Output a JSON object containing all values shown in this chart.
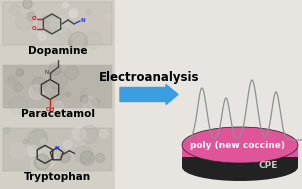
{
  "bg_color": "#e8e4df",
  "arrow_color": "#3a9ee0",
  "arrow_text": "Electroanalysis",
  "arrow_text_fontsize": 8.5,
  "label_dopamine": "Dopamine",
  "label_paracetamol": "Paracetamol",
  "label_tryptophan": "Tryptophan",
  "label_fontsize": 7.5,
  "label_color": "#000000",
  "electrode_top_color": "#e0559a",
  "electrode_bottom_color": "#222222",
  "electrode_label_top": "poly (new coccine)",
  "electrode_label_bottom": "CPE",
  "electrode_label_color_top": "#ffffff",
  "electrode_label_color_bottom": "#cccccc",
  "electrode_label_fontsize": 6.5,
  "signal_color": "#909090",
  "signal_linewidth": 0.9,
  "left_panel_bg": "#d4d0c8",
  "dopamine_img_colors": [
    "#c8c4bc",
    "#e8e0d8",
    "#d0ccc4"
  ],
  "paracetamol_img_colors": [
    "#b0aca4",
    "#d0ccc4",
    "#c0bcb4"
  ],
  "tryptophan_img_colors": [
    "#bab6ae",
    "#d8d4cc",
    "#c8c4bc"
  ],
  "red_accent": "#cc2020",
  "blue_accent": "#2244cc",
  "dark_accent": "#333333"
}
